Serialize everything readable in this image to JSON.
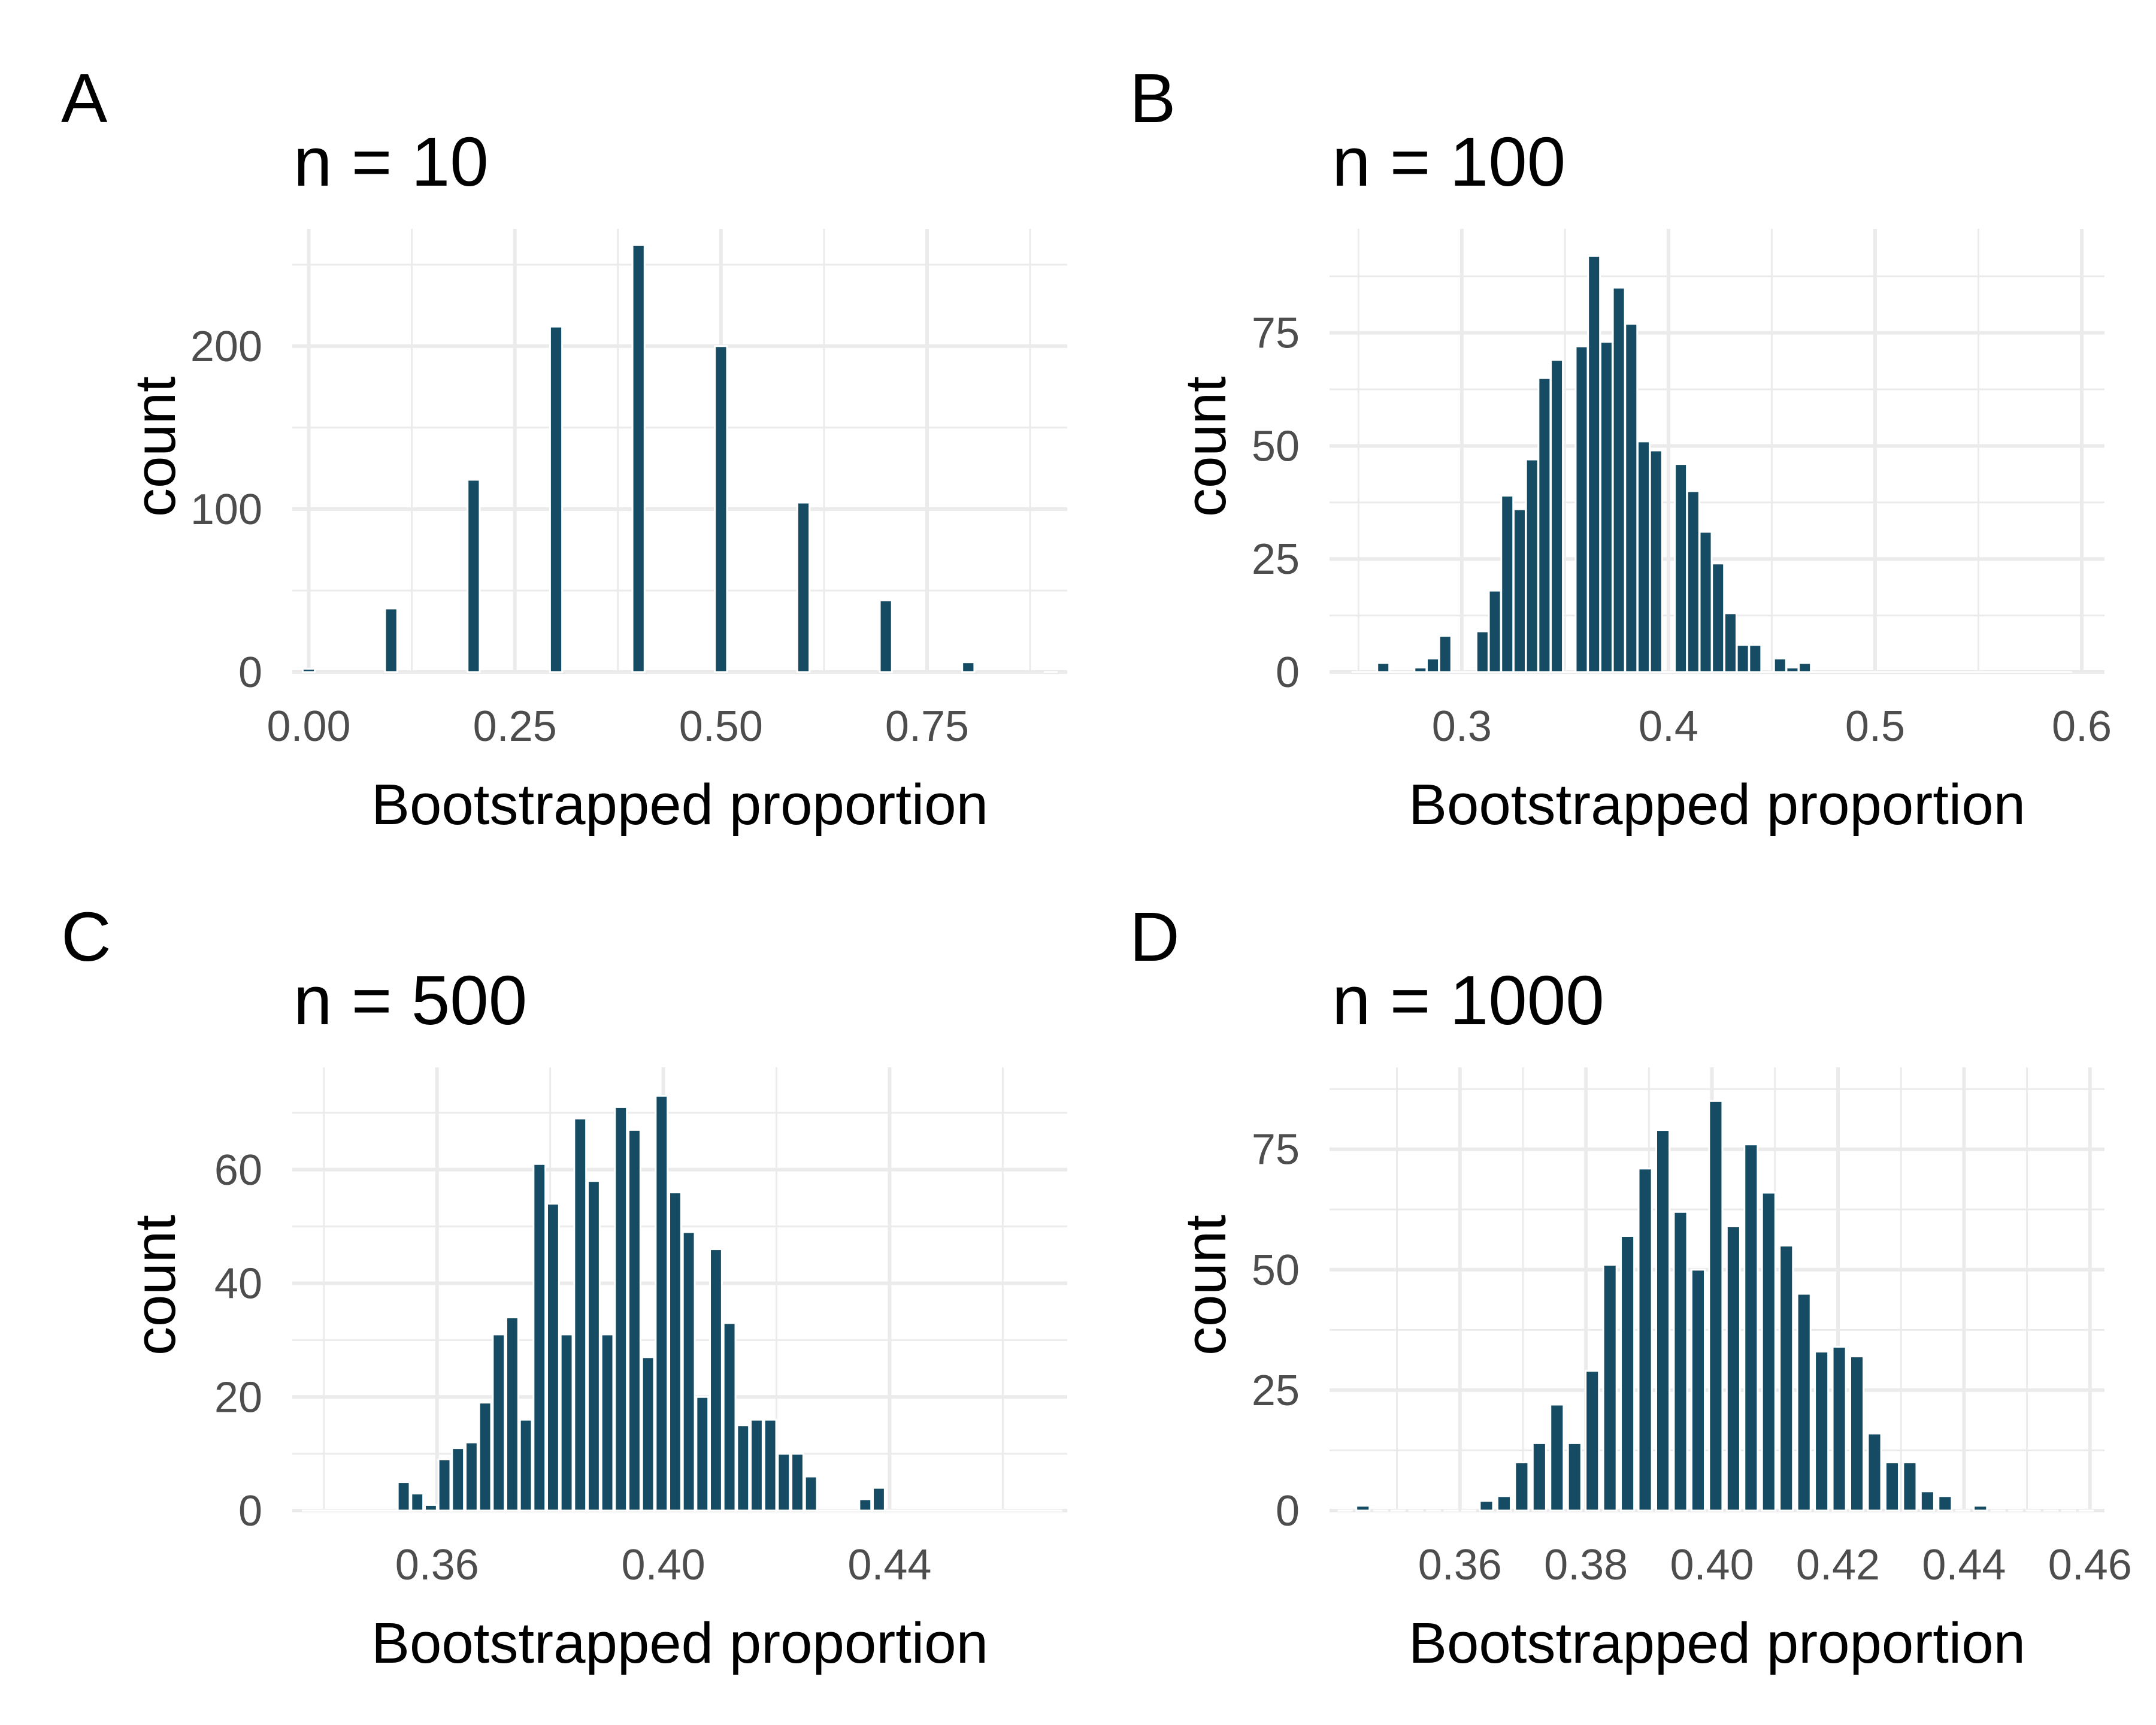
{
  "figure": {
    "background": "#ffffff",
    "bar_color": "#154c63",
    "grid_color": "#ebebeb"
  },
  "chart_data": [
    {
      "type": "bar",
      "panel_label": "A",
      "title": "n = 10",
      "xlabel": "Bootstrapped proportion",
      "ylabel": "count",
      "xlim": [
        -0.02,
        0.92
      ],
      "ylim": [
        0,
        272
      ],
      "x_ticks": [
        0,
        0.25,
        0.5,
        0.75
      ],
      "x_tick_labels": [
        "0.00",
        "0.25",
        "0.50",
        "0.75"
      ],
      "y_ticks": [
        0,
        100,
        200
      ],
      "y_tick_labels": [
        "0",
        "100",
        "200"
      ],
      "bin_width": 0.0147,
      "x": [
        0,
        0.1,
        0.2,
        0.3,
        0.4,
        0.5,
        0.6,
        0.7,
        0.8,
        0.9
      ],
      "values": [
        2,
        39,
        118,
        212,
        262,
        200,
        104,
        44,
        6,
        0
      ]
    },
    {
      "type": "bar",
      "panel_label": "B",
      "title": "n = 100",
      "xlabel": "Bootstrapped proportion",
      "ylabel": "count",
      "xlim": [
        0.236,
        0.611
      ],
      "ylim": [
        0,
        98
      ],
      "x_ticks": [
        0.3,
        0.4,
        0.5,
        0.6
      ],
      "x_tick_labels": [
        "0.3",
        "0.4",
        "0.5",
        "0.6"
      ],
      "y_ticks": [
        0,
        25,
        50,
        75
      ],
      "y_tick_labels": [
        "0",
        "25",
        "50",
        "75"
      ],
      "bin_width": 0.0058,
      "x": [
        0.25,
        0.256,
        0.262,
        0.268,
        0.274,
        0.28,
        0.286,
        0.292,
        0.298,
        0.304,
        0.31,
        0.316,
        0.322,
        0.328,
        0.334,
        0.34,
        0.346,
        0.352,
        0.358,
        0.364,
        0.37,
        0.376,
        0.382,
        0.388,
        0.394,
        0.4,
        0.406,
        0.412,
        0.418,
        0.424,
        0.43,
        0.436,
        0.442,
        0.448,
        0.454,
        0.46,
        0.466,
        0.472,
        0.478,
        0.484,
        0.49,
        0.496,
        0.502,
        0.508,
        0.514,
        0.52,
        0.526,
        0.532,
        0.538,
        0.544,
        0.55,
        0.556,
        0.562,
        0.568,
        0.574,
        0.58,
        0.586,
        0.592
      ],
      "values": [
        0,
        0,
        2,
        0,
        0,
        1,
        3,
        8,
        0,
        0,
        9,
        18,
        39,
        36,
        47,
        65,
        69,
        0,
        72,
        92,
        73,
        85,
        77,
        51,
        49,
        0,
        46,
        40,
        31,
        24,
        13,
        6,
        6,
        0,
        3,
        1,
        2,
        0,
        0,
        0,
        0,
        0,
        0,
        0,
        0,
        0,
        0,
        0,
        0,
        0,
        0,
        0,
        0,
        0,
        0,
        0,
        0,
        0
      ]
    },
    {
      "type": "bar",
      "panel_label": "C",
      "title": "n = 500",
      "xlabel": "Bootstrapped proportion",
      "ylabel": "count",
      "xlim": [
        0.3344,
        0.4714
      ],
      "ylim": [
        0,
        78
      ],
      "x_ticks": [
        0.36,
        0.4,
        0.44
      ],
      "x_tick_labels": [
        "0.36",
        "0.40",
        "0.44"
      ],
      "y_ticks": [
        0,
        20,
        40,
        60
      ],
      "y_tick_labels": [
        "0",
        "20",
        "40",
        "60"
      ],
      "bin_width": 0.0021,
      "x": [
        0.3373,
        0.3397,
        0.3421,
        0.3445,
        0.3469,
        0.3493,
        0.3517,
        0.3541,
        0.3565,
        0.3589,
        0.3613,
        0.3637,
        0.3661,
        0.3685,
        0.3709,
        0.3733,
        0.3757,
        0.3781,
        0.3805,
        0.3829,
        0.3853,
        0.3877,
        0.3901,
        0.3925,
        0.3949,
        0.3973,
        0.3997,
        0.4021,
        0.4045,
        0.4069,
        0.4093,
        0.4117,
        0.4141,
        0.4165,
        0.4189,
        0.4213,
        0.4237,
        0.4261,
        0.4285,
        0.4309,
        0.4333,
        0.4357,
        0.4381,
        0.4405,
        0.4429,
        0.4453,
        0.4477,
        0.4501,
        0.4525,
        0.4549,
        0.4573,
        0.4597,
        0.4621,
        0.4645,
        0.4669,
        0.4693
      ],
      "values": [
        0,
        0,
        0,
        0,
        0,
        0,
        0,
        5,
        3,
        1,
        9,
        11,
        12,
        19,
        31,
        34,
        16,
        61,
        54,
        31,
        69,
        58,
        31,
        71,
        67,
        27,
        73,
        56,
        49,
        20,
        46,
        33,
        15,
        16,
        16,
        10,
        10,
        6,
        0,
        0,
        0,
        2,
        4,
        0,
        0,
        0,
        0,
        0,
        0,
        0,
        0,
        0,
        0,
        0,
        0,
        0
      ]
    },
    {
      "type": "bar",
      "panel_label": "D",
      "title": "n = 1000",
      "xlabel": "Bootstrapped proportion",
      "ylabel": "count",
      "xlim": [
        0.3393,
        0.4623
      ],
      "ylim": [
        0,
        92
      ],
      "x_ticks": [
        0.36,
        0.38,
        0.4,
        0.42,
        0.44,
        0.46
      ],
      "x_tick_labels": [
        "0.36",
        "0.38",
        "0.40",
        "0.42",
        "0.44",
        "0.46"
      ],
      "y_ticks": [
        0,
        25,
        50,
        75
      ],
      "y_tick_labels": [
        "0",
        "25",
        "50",
        "75"
      ],
      "bin_width": 0.0021,
      "x": [
        0.3418,
        0.3446,
        0.3474,
        0.3502,
        0.353,
        0.3558,
        0.3586,
        0.3614,
        0.3642,
        0.367,
        0.3698,
        0.3726,
        0.3754,
        0.3782,
        0.381,
        0.3838,
        0.3866,
        0.3894,
        0.3922,
        0.395,
        0.3978,
        0.4006,
        0.4034,
        0.4062,
        0.409,
        0.4118,
        0.4146,
        0.4174,
        0.4202,
        0.423,
        0.4258,
        0.4286,
        0.4314,
        0.4342,
        0.437,
        0.4398,
        0.4426,
        0.4454,
        0.4482,
        0.451,
        0.4538,
        0.4566,
        0.4594
      ],
      "values": [
        0,
        1,
        0,
        0,
        0,
        0,
        0,
        0,
        2,
        3,
        10,
        14,
        22,
        14,
        29,
        51,
        57,
        71,
        79,
        62,
        50,
        85,
        59,
        76,
        66,
        55,
        45,
        33,
        34,
        32,
        16,
        10,
        10,
        4,
        3,
        0,
        1,
        0,
        0,
        0,
        0,
        0,
        0
      ]
    }
  ]
}
